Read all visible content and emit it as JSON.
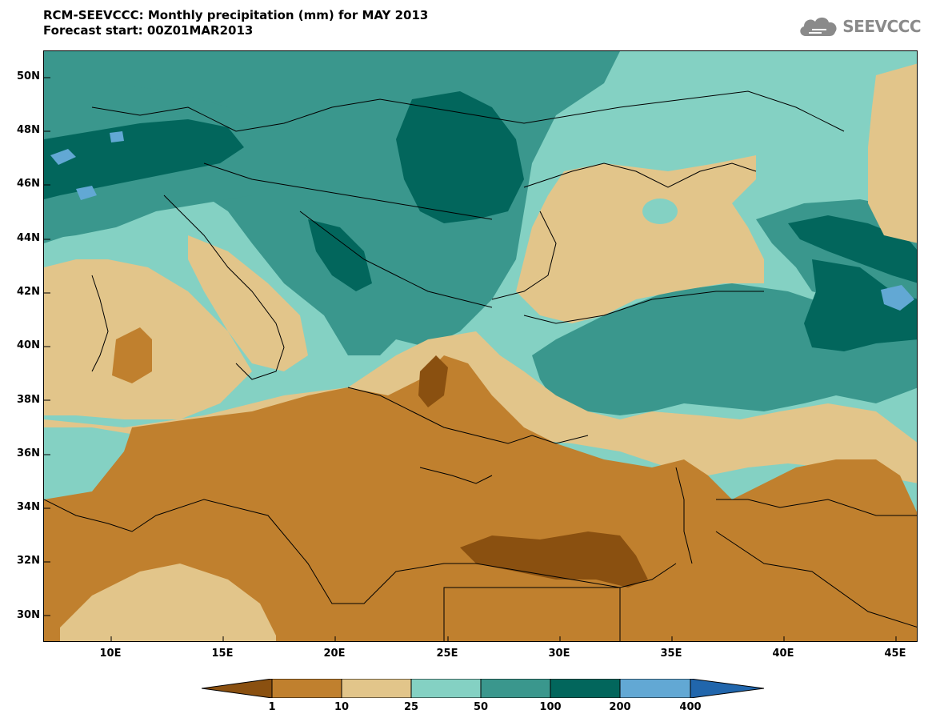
{
  "title": {
    "line1": "RCM-SEEVCCC: Monthly precipitation (mm) for MAY 2013",
    "line2": "Forecast start: 00Z01MAR2013"
  },
  "logo": {
    "text": "SEEVCCC",
    "icon": "cloud-icon"
  },
  "axes": {
    "lat_labels": [
      "50N",
      "48N",
      "46N",
      "44N",
      "42N",
      "40N",
      "38N",
      "36N",
      "34N",
      "32N",
      "30N"
    ],
    "lon_labels": [
      "10E",
      "15E",
      "20E",
      "25E",
      "30E",
      "35E",
      "40E",
      "45E"
    ],
    "lon_range": [
      7,
      46
    ],
    "lat_range": [
      29,
      51
    ]
  },
  "colorbar": {
    "labels": [
      "1",
      "10",
      "25",
      "50",
      "100",
      "200",
      "400"
    ],
    "colors": [
      "#8a5010",
      "#c0802e",
      "#e2c58a",
      "#84d1c3",
      "#3a978d",
      "#02665c",
      "#62a8d4",
      "#2166ac"
    ]
  },
  "colors": {
    "lt1": "#8a5010",
    "1-10": "#c0802e",
    "10-25": "#e2c58a",
    "25-50": "#84d1c3",
    "50-100": "#3a978d",
    "100-200": "#02665c",
    "200-400": "#62a8d4",
    "gt400": "#2166ac"
  }
}
